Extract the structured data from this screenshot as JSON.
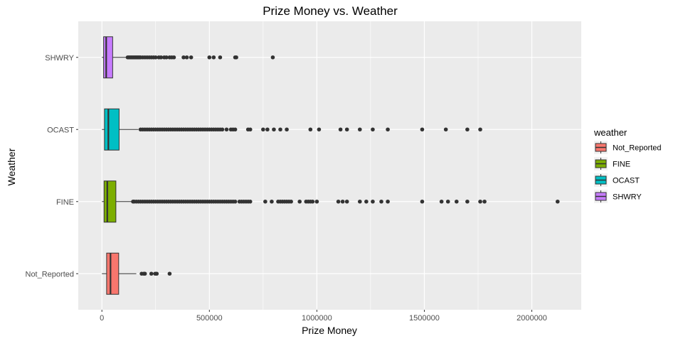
{
  "chart_data": {
    "type": "boxplot",
    "orientation": "horizontal",
    "title": "Prize Money vs. Weather",
    "xlabel": "Prize Money",
    "ylabel": "Weather",
    "xlim": [
      -110000,
      2230000
    ],
    "x_ticks": [
      0,
      500000,
      1000000,
      1500000,
      2000000
    ],
    "x_tick_labels": [
      "0",
      "500000",
      "1000000",
      "1500000",
      "2000000"
    ],
    "categories": [
      "Not_Reported",
      "FINE",
      "OCAST",
      "SHWRY"
    ],
    "grid": true,
    "legend": {
      "title": "weather",
      "placement": "right",
      "entries": [
        "Not_Reported",
        "FINE",
        "OCAST",
        "SHWRY"
      ]
    },
    "colors": {
      "Not_Reported": "#F8766D",
      "FINE": "#7CAE00",
      "OCAST": "#00BFC4",
      "SHWRY": "#C77CFF",
      "panel_background": "#EBEBEB",
      "grid": "#FFFFFF",
      "outlier": "#333333"
    },
    "series": [
      {
        "category": "Not_Reported",
        "whisker_low": 0,
        "q1": 22000,
        "median": 40000,
        "q3": 78000,
        "whisker_high": 160000,
        "outliers": [
          185000,
          195000,
          200000,
          230000,
          248000,
          255000,
          315000
        ]
      },
      {
        "category": "FINE",
        "whisker_low": 0,
        "q1": 10000,
        "median": 25000,
        "q3": 65000,
        "whisker_high": 140000,
        "outliers": [
          145000,
          150000,
          160000,
          170000,
          180000,
          190000,
          200000,
          210000,
          220000,
          230000,
          240000,
          250000,
          260000,
          270000,
          280000,
          290000,
          300000,
          310000,
          320000,
          330000,
          340000,
          350000,
          360000,
          370000,
          380000,
          390000,
          400000,
          410000,
          420000,
          430000,
          440000,
          450000,
          460000,
          470000,
          480000,
          490000,
          500000,
          510000,
          520000,
          530000,
          540000,
          550000,
          560000,
          570000,
          580000,
          590000,
          600000,
          610000,
          620000,
          640000,
          650000,
          660000,
          670000,
          680000,
          690000,
          760000,
          790000,
          820000,
          830000,
          840000,
          850000,
          860000,
          870000,
          880000,
          920000,
          950000,
          960000,
          970000,
          980000,
          1000000,
          1100000,
          1120000,
          1140000,
          1200000,
          1230000,
          1260000,
          1300000,
          1330000,
          1490000,
          1580000,
          1610000,
          1650000,
          1700000,
          1760000,
          1780000,
          2120000
        ]
      },
      {
        "category": "OCAST",
        "whisker_low": 0,
        "q1": 12000,
        "median": 30000,
        "q3": 80000,
        "whisker_high": 170000,
        "outliers": [
          180000,
          190000,
          200000,
          210000,
          220000,
          230000,
          240000,
          250000,
          260000,
          270000,
          280000,
          290000,
          300000,
          310000,
          320000,
          330000,
          340000,
          350000,
          360000,
          370000,
          380000,
          390000,
          400000,
          410000,
          420000,
          430000,
          440000,
          450000,
          460000,
          470000,
          480000,
          490000,
          500000,
          510000,
          520000,
          530000,
          540000,
          550000,
          560000,
          580000,
          600000,
          610000,
          620000,
          680000,
          690000,
          750000,
          770000,
          800000,
          830000,
          860000,
          970000,
          1010000,
          1110000,
          1140000,
          1200000,
          1260000,
          1330000,
          1490000,
          1600000,
          1700000,
          1760000
        ]
      },
      {
        "category": "SHWRY",
        "whisker_low": 0,
        "q1": 8000,
        "median": 20000,
        "q3": 50000,
        "whisker_high": 115000,
        "outliers": [
          120000,
          125000,
          130000,
          135000,
          140000,
          145000,
          150000,
          155000,
          160000,
          165000,
          170000,
          175000,
          180000,
          190000,
          200000,
          210000,
          220000,
          230000,
          240000,
          250000,
          265000,
          275000,
          290000,
          300000,
          315000,
          325000,
          335000,
          380000,
          395000,
          415000,
          500000,
          520000,
          550000,
          620000,
          625000,
          795000
        ]
      }
    ]
  }
}
